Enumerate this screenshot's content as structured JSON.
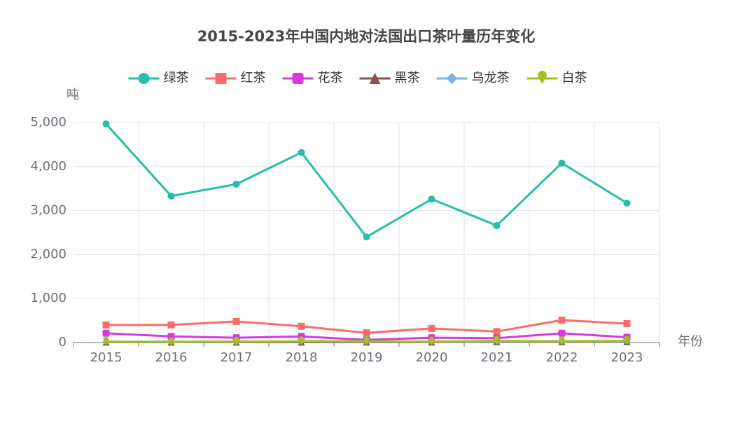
{
  "chart_data": {
    "type": "line",
    "title": "2015-2023年中国内地对法国出口茶叶量历年变化",
    "y_label": "吨",
    "x_label": "年份",
    "categories": [
      "2015",
      "2016",
      "2017",
      "2018",
      "2019",
      "2020",
      "2021",
      "2022",
      "2023"
    ],
    "series": [
      {
        "name": "绿茶",
        "color": "#26bfa7",
        "symbol": "circle",
        "values": [
          4970,
          3330,
          3600,
          4320,
          2400,
          3260,
          2660,
          4080,
          3170
        ]
      },
      {
        "name": "红茶",
        "color": "#ff6b6b",
        "symbol": "rect",
        "values": [
          400,
          400,
          480,
          370,
          220,
          320,
          250,
          510,
          430
        ]
      },
      {
        "name": "花茶",
        "color": "#d63ae0",
        "symbol": "roundRect",
        "values": [
          210,
          140,
          110,
          140,
          60,
          110,
          100,
          210,
          120
        ]
      },
      {
        "name": "黑茶",
        "color": "#8b4f4f",
        "symbol": "triangle",
        "values": [
          10,
          10,
          10,
          10,
          10,
          10,
          20,
          20,
          20
        ]
      },
      {
        "name": "乌龙茶",
        "color": "#7fb2e6",
        "symbol": "diamond",
        "values": [
          20,
          20,
          20,
          30,
          20,
          20,
          30,
          30,
          30
        ]
      },
      {
        "name": "白茶",
        "color": "#a4c21c",
        "symbol": "pin",
        "values": [
          20,
          10,
          20,
          30,
          30,
          20,
          40,
          30,
          40
        ]
      }
    ],
    "ylim": [
      0,
      5000
    ],
    "yticks": [
      0,
      {
        "value": 1000,
        "label": "1,000"
      },
      {
        "value": 2000,
        "label": "2,000"
      },
      {
        "value": 3000,
        "label": "3,000"
      },
      {
        "value": 4000,
        "label": "4,000"
      },
      {
        "value": 5000,
        "label": "5,000"
      }
    ],
    "grid": true
  }
}
